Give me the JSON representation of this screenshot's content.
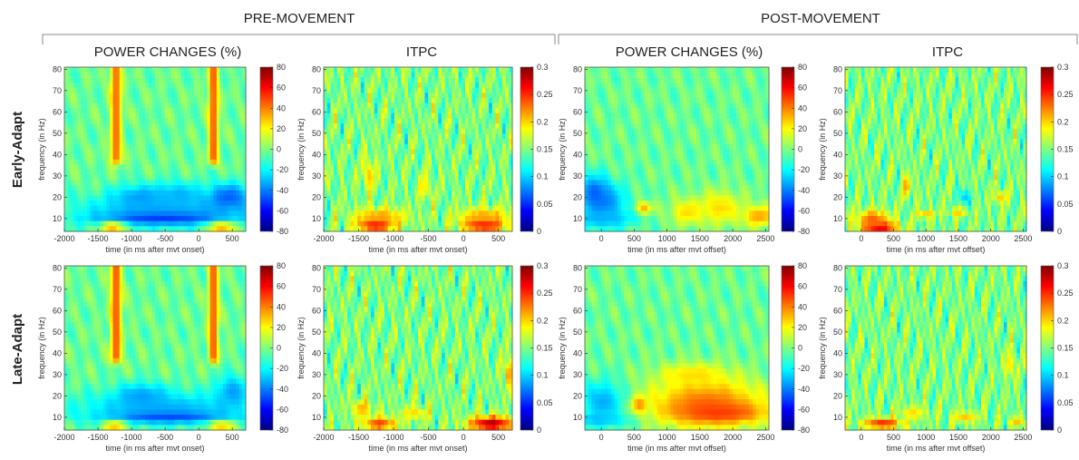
{
  "sections": [
    {
      "key": "pre",
      "title": "PRE-MOVEMENT"
    },
    {
      "key": "post",
      "title": "POST-MOVEMENT"
    }
  ],
  "rows": [
    {
      "key": "early",
      "label": "Early-Adapt"
    },
    {
      "key": "late",
      "label": "Late-Adapt"
    }
  ],
  "column_titles": [
    "POWER CHANGES (%)",
    "ITPC",
    "POWER CHANGES (%)",
    "ITPC"
  ],
  "colormap": [
    "#00007f",
    "#0000ff",
    "#007fff",
    "#00ffff",
    "#7fff7f",
    "#ffff00",
    "#ff7f00",
    "#ff0000",
    "#7f0000"
  ],
  "chart_data": [
    {
      "type": "heatmap",
      "section": "pre",
      "row": "early",
      "title": "POWER CHANGES (%)",
      "xlabel": "time (in ms after mvt onset)",
      "ylabel": "frequency (in Hz)",
      "xlim": [
        -2000,
        700
      ],
      "ylim": [
        4,
        81
      ],
      "xticks": [
        -2000,
        -1500,
        -1000,
        -500,
        0,
        500
      ],
      "yticks": [
        10,
        20,
        30,
        40,
        50,
        60,
        70,
        80
      ],
      "colorbar": {
        "range": [
          -80,
          80
        ],
        "ticks": [
          80,
          60,
          40,
          20,
          0,
          -20,
          -40,
          -60,
          -80
        ]
      },
      "features": [
        {
          "kind": "vband",
          "x": -1230,
          "y0": 38,
          "y1": 81,
          "w": 80,
          "v": 0.78
        },
        {
          "kind": "vband",
          "x": 220,
          "y0": 38,
          "y1": 81,
          "w": 70,
          "v": 0.8
        },
        {
          "kind": "blob",
          "x": -500,
          "y": 13,
          "rx": 1400,
          "ry": 8,
          "v": 0.28
        },
        {
          "kind": "blob",
          "x": -550,
          "y": 10,
          "rx": 900,
          "ry": 2.5,
          "v": 0.18
        },
        {
          "kind": "blob",
          "x": -850,
          "y": 20,
          "rx": 450,
          "ry": 6,
          "v": 0.28
        },
        {
          "kind": "blob",
          "x": -300,
          "y": 21,
          "rx": 350,
          "ry": 6,
          "v": 0.3
        },
        {
          "kind": "blob",
          "x": 450,
          "y": 20,
          "rx": 350,
          "ry": 7,
          "v": 0.22
        },
        {
          "kind": "blob",
          "x": -1280,
          "y": 6,
          "rx": 180,
          "ry": 2.5,
          "v": 0.72
        },
        {
          "kind": "blob",
          "x": 350,
          "y": 6,
          "rx": 220,
          "ry": 2.5,
          "v": 0.72
        }
      ]
    },
    {
      "type": "heatmap",
      "section": "pre",
      "row": "early",
      "title": "ITPC",
      "xlabel": "time (in ms after mvt onset)",
      "ylabel": "frequency (in Hz)",
      "xlim": [
        -2000,
        700
      ],
      "ylim": [
        4,
        81
      ],
      "xticks": [
        -2000,
        -1500,
        -1000,
        -500,
        0,
        500
      ],
      "yticks": [
        10,
        20,
        30,
        40,
        50,
        60,
        70,
        80
      ],
      "colorbar": {
        "range": [
          0,
          0.3
        ],
        "ticks": [
          0.3,
          0.25,
          0.2,
          0.15,
          0.1,
          0.05,
          0
        ]
      },
      "features": [
        {
          "kind": "blob",
          "x": -1250,
          "y": 7,
          "rx": 260,
          "ry": 3,
          "v": 0.95
        },
        {
          "kind": "blob",
          "x": 300,
          "y": 7,
          "rx": 300,
          "ry": 3,
          "v": 0.95
        },
        {
          "kind": "blob",
          "x": -1200,
          "y": 11,
          "rx": 380,
          "ry": 4,
          "v": 0.72
        },
        {
          "kind": "blob",
          "x": 300,
          "y": 11,
          "rx": 380,
          "ry": 4,
          "v": 0.72
        },
        {
          "kind": "blob",
          "x": -1350,
          "y": 30,
          "rx": 80,
          "ry": 8,
          "v": 0.68
        },
        {
          "kind": "blob",
          "x": -550,
          "y": 25,
          "rx": 80,
          "ry": 6,
          "v": 0.65
        }
      ]
    },
    {
      "type": "heatmap",
      "section": "post",
      "row": "early",
      "title": "POWER CHANGES (%)",
      "xlabel": "time (in ms after mvt offset)",
      "ylabel": "frequency (in Hz)",
      "xlim": [
        -250,
        2550
      ],
      "ylim": [
        4,
        81
      ],
      "xticks": [
        0,
        500,
        1000,
        1500,
        2000,
        2500
      ],
      "yticks": [
        10,
        20,
        30,
        40,
        50,
        60,
        70,
        80
      ],
      "colorbar": {
        "range": [
          -80,
          80
        ],
        "ticks": [
          80,
          60,
          40,
          20,
          0,
          -20,
          -40,
          -60,
          -80
        ]
      },
      "features": [
        {
          "kind": "blob",
          "x": 50,
          "y": 17,
          "rx": 350,
          "ry": 10,
          "v": 0.26
        },
        {
          "kind": "blob",
          "x": -100,
          "y": 22,
          "rx": 200,
          "ry": 8,
          "v": 0.22
        },
        {
          "kind": "blob",
          "x": 0,
          "y": 10,
          "rx": 500,
          "ry": 4,
          "v": 0.3
        },
        {
          "kind": "blob",
          "x": 650,
          "y": 15,
          "rx": 130,
          "ry": 3,
          "v": 0.7
        },
        {
          "kind": "blob",
          "x": 1300,
          "y": 13,
          "rx": 250,
          "ry": 6,
          "v": 0.66
        },
        {
          "kind": "blob",
          "x": 1800,
          "y": 15,
          "rx": 350,
          "ry": 8,
          "v": 0.66
        },
        {
          "kind": "blob",
          "x": 2400,
          "y": 11,
          "rx": 250,
          "ry": 5,
          "v": 0.72
        }
      ]
    },
    {
      "type": "heatmap",
      "section": "post",
      "row": "early",
      "title": "ITPC",
      "xlabel": "time (in ms after mvt offset)",
      "ylabel": "frequency (in Hz)",
      "xlim": [
        -250,
        2550
      ],
      "ylim": [
        4,
        81
      ],
      "xticks": [
        0,
        500,
        1000,
        1500,
        2000,
        2500
      ],
      "yticks": [
        10,
        20,
        30,
        40,
        50,
        60,
        70,
        80
      ],
      "colorbar": {
        "range": [
          0,
          0.3
        ],
        "ticks": [
          0.3,
          0.25,
          0.2,
          0.15,
          0.1,
          0.05,
          0
        ]
      },
      "features": [
        {
          "kind": "blob",
          "x": 280,
          "y": 6,
          "rx": 280,
          "ry": 2.5,
          "v": 0.95
        },
        {
          "kind": "blob",
          "x": 180,
          "y": 10,
          "rx": 250,
          "ry": 4,
          "v": 0.78
        },
        {
          "kind": "blob",
          "x": 700,
          "y": 25,
          "rx": 70,
          "ry": 5,
          "v": 0.72
        },
        {
          "kind": "blob",
          "x": 1000,
          "y": 12,
          "rx": 150,
          "ry": 2,
          "v": 0.68
        },
        {
          "kind": "blob",
          "x": 1500,
          "y": 13,
          "rx": 150,
          "ry": 2,
          "v": 0.68
        },
        {
          "kind": "blob",
          "x": 1600,
          "y": 20,
          "rx": 70,
          "ry": 4,
          "v": 0.3
        },
        {
          "kind": "blob",
          "x": 2150,
          "y": 20,
          "rx": 100,
          "ry": 3,
          "v": 0.68
        }
      ]
    },
    {
      "type": "heatmap",
      "section": "pre",
      "row": "late",
      "title": "POWER CHANGES (%)",
      "xlabel": "time (in ms after mvt onset)",
      "ylabel": "frequency (in Hz)",
      "xlim": [
        -2000,
        700
      ],
      "ylim": [
        4,
        81
      ],
      "xticks": [
        -2000,
        -1500,
        -1000,
        -500,
        0,
        500
      ],
      "yticks": [
        10,
        20,
        30,
        40,
        50,
        60,
        70,
        80
      ],
      "colorbar": {
        "range": [
          -80,
          80
        ],
        "ticks": [
          80,
          60,
          40,
          20,
          0,
          -20,
          -40,
          -60,
          -80
        ]
      },
      "features": [
        {
          "kind": "vband",
          "x": -1230,
          "y0": 38,
          "y1": 81,
          "w": 80,
          "v": 0.8
        },
        {
          "kind": "vband",
          "x": 220,
          "y0": 38,
          "y1": 81,
          "w": 70,
          "v": 0.8
        },
        {
          "kind": "blob",
          "x": -500,
          "y": 14,
          "rx": 1400,
          "ry": 8,
          "v": 0.3
        },
        {
          "kind": "blob",
          "x": -450,
          "y": 10,
          "rx": 900,
          "ry": 2.5,
          "v": 0.2
        },
        {
          "kind": "blob",
          "x": -850,
          "y": 20,
          "rx": 400,
          "ry": 6,
          "v": 0.28
        },
        {
          "kind": "blob",
          "x": 500,
          "y": 22,
          "rx": 250,
          "ry": 8,
          "v": 0.28
        },
        {
          "kind": "blob",
          "x": -1250,
          "y": 6,
          "rx": 180,
          "ry": 2.5,
          "v": 0.7
        },
        {
          "kind": "blob",
          "x": 350,
          "y": 6,
          "rx": 220,
          "ry": 2.5,
          "v": 0.68
        }
      ]
    },
    {
      "type": "heatmap",
      "section": "pre",
      "row": "late",
      "title": "ITPC",
      "xlabel": "time (in ms after mvt onset)",
      "ylabel": "frequency (in Hz)",
      "xlim": [
        -2000,
        700
      ],
      "ylim": [
        4,
        81
      ],
      "xticks": [
        -2000,
        -1500,
        -1000,
        -500,
        0,
        500
      ],
      "yticks": [
        10,
        20,
        30,
        40,
        50,
        60,
        70,
        80
      ],
      "colorbar": {
        "range": [
          0,
          0.3
        ],
        "ticks": [
          0.3,
          0.25,
          0.2,
          0.15,
          0.1,
          0.05,
          0
        ]
      },
      "features": [
        {
          "kind": "blob",
          "x": -1200,
          "y": 7,
          "rx": 250,
          "ry": 3,
          "v": 0.82
        },
        {
          "kind": "blob",
          "x": 400,
          "y": 7,
          "rx": 320,
          "ry": 3.5,
          "v": 0.95
        },
        {
          "kind": "blob",
          "x": 650,
          "y": 30,
          "rx": 50,
          "ry": 7,
          "v": 0.78
        },
        {
          "kind": "blob",
          "x": -1450,
          "y": 14,
          "rx": 150,
          "ry": 4,
          "v": 0.7
        },
        {
          "kind": "blob",
          "x": -700,
          "y": 12,
          "rx": 200,
          "ry": 3,
          "v": 0.66
        }
      ]
    },
    {
      "type": "heatmap",
      "section": "post",
      "row": "late",
      "title": "POWER CHANGES (%)",
      "xlabel": "time (in ms after mvt offset)",
      "ylabel": "frequency (in Hz)",
      "xlim": [
        -250,
        2550
      ],
      "ylim": [
        4,
        81
      ],
      "xticks": [
        0,
        500,
        1000,
        1500,
        2000,
        2500
      ],
      "yticks": [
        10,
        20,
        30,
        40,
        50,
        60,
        70,
        80
      ],
      "colorbar": {
        "range": [
          -80,
          80
        ],
        "ticks": [
          80,
          60,
          40,
          20,
          0,
          -20,
          -40,
          -60,
          -80
        ]
      },
      "features": [
        {
          "kind": "blob",
          "x": 50,
          "y": 17,
          "rx": 350,
          "ry": 10,
          "v": 0.27
        },
        {
          "kind": "blob",
          "x": 0,
          "y": 9,
          "rx": 500,
          "ry": 3,
          "v": 0.3
        },
        {
          "kind": "blob",
          "x": 580,
          "y": 16,
          "rx": 120,
          "ry": 4,
          "v": 0.72
        },
        {
          "kind": "blob",
          "x": 1600,
          "y": 17,
          "rx": 900,
          "ry": 12,
          "v": 0.76
        },
        {
          "kind": "blob",
          "x": 1800,
          "y": 12,
          "rx": 700,
          "ry": 5,
          "v": 0.82
        },
        {
          "kind": "blob",
          "x": 1400,
          "y": 30,
          "rx": 500,
          "ry": 5,
          "v": 0.66
        }
      ]
    },
    {
      "type": "heatmap",
      "section": "post",
      "row": "late",
      "title": "ITPC",
      "xlabel": "time (in ms after mvt offset)",
      "ylabel": "frequency (in Hz)",
      "xlim": [
        -250,
        2550
      ],
      "ylim": [
        4,
        81
      ],
      "xticks": [
        0,
        500,
        1000,
        1500,
        2000,
        2500
      ],
      "yticks": [
        10,
        20,
        30,
        40,
        50,
        60,
        70,
        80
      ],
      "colorbar": {
        "range": [
          0,
          0.3
        ],
        "ticks": [
          0.3,
          0.25,
          0.2,
          0.15,
          0.1,
          0.05,
          0
        ]
      },
      "features": [
        {
          "kind": "blob",
          "x": 330,
          "y": 7,
          "rx": 300,
          "ry": 2.5,
          "v": 0.85
        },
        {
          "kind": "blob",
          "x": 800,
          "y": 12,
          "rx": 200,
          "ry": 3,
          "v": 0.66
        },
        {
          "kind": "blob",
          "x": 1600,
          "y": 10,
          "rx": 200,
          "ry": 2.5,
          "v": 0.68
        },
        {
          "kind": "blob",
          "x": 2400,
          "y": 8,
          "rx": 120,
          "ry": 2,
          "v": 0.7
        },
        {
          "kind": "blob",
          "x": 2300,
          "y": 35,
          "rx": 60,
          "ry": 6,
          "v": 0.68
        }
      ]
    }
  ]
}
